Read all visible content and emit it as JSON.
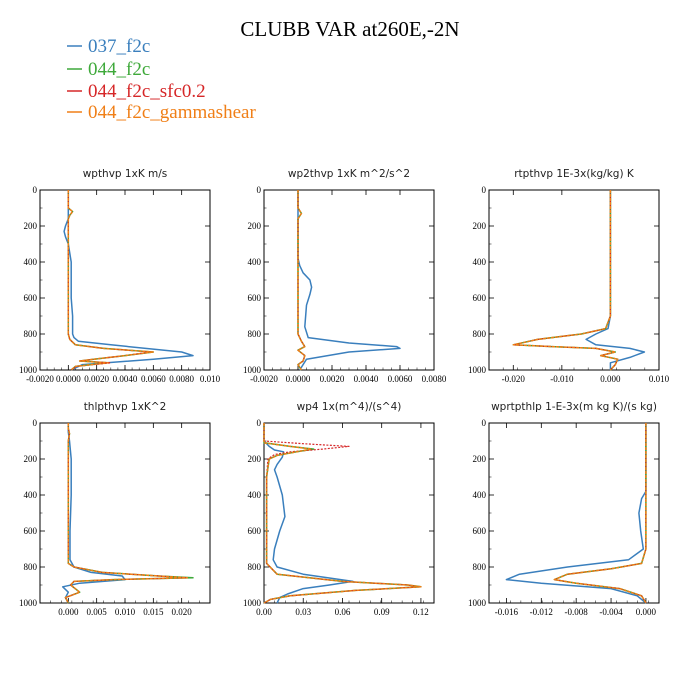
{
  "title": "CLUBB VAR at260E,-2N",
  "legend": [
    {
      "label": "037_f2c",
      "color": "#3a7fbd"
    },
    {
      "label": "044_f2c",
      "color": "#3ea93a"
    },
    {
      "label": "044_f2c_sfc0.2",
      "color": "#d62728"
    },
    {
      "label": "044_f2c_gammashear",
      "color": "#f07f17"
    }
  ],
  "chart_data": [
    {
      "type": "line",
      "title": "wpthvp  1xK m/s",
      "xlim": [
        -0.002,
        0.01
      ],
      "ylim": [
        1000,
        0
      ],
      "xticks": [
        -0.002,
        0.0,
        0.002,
        0.004,
        0.006,
        0.008,
        0.01
      ],
      "xticklabels": [
        "-0.0020",
        "0.0000",
        "0.0020",
        "0.0040",
        "0.0060",
        "0.0080",
        "0.010"
      ],
      "yticks": [
        0,
        200,
        400,
        600,
        800,
        1000
      ],
      "series": [
        {
          "name": "037_f2c",
          "x": [
            0.0,
            0.0,
            0.0,
            -0.0002,
            -0.0003,
            -0.0002,
            0.0,
            0.0002,
            0.0002,
            0.0002,
            0.0003,
            0.0003,
            0.0003,
            0.0004,
            0.0007,
            0.003,
            0.008,
            0.0088,
            0.006,
            0.001,
            0.0002
          ],
          "y": [
            0,
            110,
            160,
            200,
            230,
            260,
            300,
            400,
            500,
            600,
            700,
            780,
            800,
            820,
            840,
            860,
            900,
            920,
            940,
            970,
            1000
          ]
        },
        {
          "name": "044_f2c",
          "x": [
            0.0,
            0.0,
            0.0003,
            0.0001,
            0.0,
            0.0,
            0.0,
            0.0,
            0.0,
            0.0001,
            0.0005,
            0.0025,
            0.006,
            0.004,
            0.0018,
            0.0008,
            0.0028,
            0.0005,
            0.0002
          ],
          "y": [
            0,
            100,
            120,
            140,
            160,
            300,
            500,
            700,
            800,
            830,
            860,
            880,
            900,
            920,
            940,
            950,
            960,
            980,
            1000
          ]
        },
        {
          "name": "044_f2c_sfc0.2",
          "x": [
            0.0,
            0.0,
            0.0003,
            0.0001,
            0.0,
            0.0,
            0.0,
            0.0,
            0.0,
            0.0001,
            0.0005,
            0.0025,
            0.0058,
            0.004,
            0.0018,
            0.0008,
            0.003,
            0.0006,
            0.0002
          ],
          "y": [
            0,
            100,
            120,
            140,
            160,
            300,
            500,
            700,
            800,
            830,
            860,
            880,
            900,
            920,
            940,
            950,
            960,
            980,
            1000
          ]
        },
        {
          "name": "044_f2c_gammashear",
          "x": [
            0.0,
            0.0,
            0.0003,
            0.0001,
            0.0,
            0.0,
            0.0,
            0.0,
            0.0,
            0.0001,
            0.0005,
            0.0025,
            0.006,
            0.004,
            0.0018,
            0.0008,
            0.0028,
            0.0005,
            0.0002
          ],
          "y": [
            0,
            100,
            120,
            140,
            160,
            300,
            500,
            700,
            800,
            830,
            860,
            880,
            900,
            920,
            940,
            950,
            960,
            980,
            1000
          ]
        }
      ]
    },
    {
      "type": "line",
      "title": "wp2thvp  1xK m^2/s^2",
      "xlim": [
        -0.002,
        0.008
      ],
      "ylim": [
        1000,
        0
      ],
      "xticks": [
        -0.002,
        0.0,
        0.002,
        0.004,
        0.006,
        0.008
      ],
      "xticklabels": [
        "-0.0020",
        "0.0000",
        "0.0020",
        "0.0040",
        "0.0060",
        "0.0080"
      ],
      "yticks": [
        0,
        200,
        400,
        600,
        800,
        1000
      ],
      "series": [
        {
          "name": "037_f2c",
          "x": [
            0.0,
            0.0,
            0.0,
            0.0001,
            0.0003,
            0.0007,
            0.0008,
            0.0007,
            0.0005,
            0.0004,
            0.0006,
            0.003,
            0.0058,
            0.006,
            0.003,
            0.0005,
            0.0001
          ],
          "y": [
            0,
            200,
            380,
            420,
            460,
            500,
            540,
            580,
            640,
            760,
            820,
            850,
            870,
            880,
            900,
            940,
            1000
          ]
        },
        {
          "name": "044_f2c",
          "x": [
            0.0,
            0.0,
            0.0002,
            0.0,
            0.0,
            0.0,
            0.0,
            0.0,
            0.0002,
            0.0004,
            0.0,
            0.0004,
            0.0003,
            0.0,
            0.0002
          ],
          "y": [
            0,
            100,
            130,
            160,
            300,
            500,
            700,
            800,
            840,
            870,
            890,
            920,
            950,
            970,
            1000
          ]
        },
        {
          "name": "044_f2c_sfc0.2",
          "x": [
            0.0,
            0.0,
            0.0002,
            0.0,
            0.0,
            0.0,
            0.0,
            0.0,
            0.0002,
            0.0004,
            0.0,
            0.0004,
            0.0003,
            0.0,
            0.0002
          ],
          "y": [
            0,
            100,
            130,
            160,
            300,
            500,
            700,
            800,
            840,
            870,
            890,
            920,
            950,
            970,
            1000
          ]
        },
        {
          "name": "044_f2c_gammashear",
          "x": [
            0.0,
            0.0,
            0.0002,
            0.0,
            0.0,
            0.0,
            0.0,
            0.0,
            0.0002,
            0.0004,
            0.0,
            0.0004,
            0.0003,
            0.0,
            0.0002
          ],
          "y": [
            0,
            100,
            130,
            160,
            300,
            500,
            700,
            800,
            840,
            870,
            890,
            920,
            950,
            970,
            1000
          ]
        }
      ]
    },
    {
      "type": "line",
      "title": "rtpthvp  1E-3x(kg/kg) K",
      "xlim": [
        -0.025,
        0.01
      ],
      "ylim": [
        1000,
        0
      ],
      "xticks": [
        -0.02,
        -0.01,
        0.0,
        0.01
      ],
      "xticklabels": [
        "-0.020",
        "-0.010",
        "0.000",
        "0.010"
      ],
      "yticks": [
        0,
        200,
        400,
        600,
        800,
        1000
      ],
      "series": [
        {
          "name": "037_f2c",
          "x": [
            0.0,
            0.0,
            0.0,
            -0.0005,
            -0.003,
            -0.005,
            -0.003,
            0.004,
            0.007,
            0.004,
            0.0,
            0.0
          ],
          "y": [
            0,
            300,
            700,
            770,
            800,
            830,
            860,
            880,
            900,
            930,
            960,
            1000
          ]
        },
        {
          "name": "044_f2c",
          "x": [
            0.0,
            0.0,
            0.0,
            -0.001,
            -0.006,
            -0.015,
            -0.02,
            -0.012,
            -0.003,
            0.001,
            -0.002,
            0.0015,
            0.001,
            0.0
          ],
          "y": [
            0,
            300,
            700,
            770,
            800,
            830,
            860,
            870,
            880,
            900,
            920,
            940,
            970,
            1000
          ]
        },
        {
          "name": "044_f2c_sfc0.2",
          "x": [
            0.0,
            0.0,
            0.0,
            -0.001,
            -0.006,
            -0.015,
            -0.02,
            -0.012,
            -0.003,
            0.001,
            -0.002,
            0.0015,
            0.001,
            0.0
          ],
          "y": [
            0,
            300,
            700,
            770,
            800,
            830,
            860,
            870,
            880,
            900,
            920,
            940,
            970,
            1000
          ]
        },
        {
          "name": "044_f2c_gammashear",
          "x": [
            0.0,
            0.0,
            0.0,
            -0.001,
            -0.006,
            -0.015,
            -0.02,
            -0.012,
            -0.003,
            0.001,
            -0.002,
            0.0015,
            0.001,
            0.0
          ],
          "y": [
            0,
            300,
            700,
            770,
            800,
            830,
            860,
            870,
            880,
            900,
            920,
            940,
            970,
            1000
          ]
        }
      ]
    },
    {
      "type": "line",
      "title": "thlpthvp  1xK^2",
      "xlim": [
        -0.005,
        0.025
      ],
      "ylim": [
        1000,
        0
      ],
      "xticks": [
        0.0,
        0.005,
        0.01,
        0.015,
        0.02
      ],
      "xticklabels": [
        "0.000",
        "0.005",
        "0.010",
        "0.015",
        "0.020"
      ],
      "yticks": [
        0,
        200,
        400,
        600,
        800,
        1000
      ],
      "series": [
        {
          "name": "037_f2c",
          "x": [
            0.0,
            0.0,
            0.0002,
            0.0005,
            0.0005,
            0.0003,
            0.0003,
            0.001,
            0.004,
            0.0095,
            0.01,
            0.002,
            -0.001,
            0.0,
            -0.0005,
            0.0
          ],
          "y": [
            0,
            50,
            100,
            200,
            400,
            600,
            760,
            800,
            830,
            850,
            870,
            890,
            910,
            940,
            970,
            1000
          ]
        },
        {
          "name": "044_f2c",
          "x": [
            0.0,
            0.0,
            0.0002,
            0.0,
            0.0,
            0.0,
            0.0,
            0.001,
            0.006,
            0.016,
            0.022,
            0.008,
            0.001,
            0.0004,
            0.002,
            -0.0005,
            0.0
          ],
          "y": [
            0,
            30,
            60,
            100,
            300,
            600,
            780,
            800,
            830,
            850,
            860,
            870,
            880,
            900,
            940,
            970,
            1000
          ]
        },
        {
          "name": "044_f2c_sfc0.2",
          "x": [
            0.0,
            0.0,
            0.0002,
            0.0,
            0.0,
            0.0,
            0.0,
            0.001,
            0.006,
            0.016,
            0.021,
            0.008,
            0.001,
            0.0004,
            0.002,
            -0.0005,
            0.0
          ],
          "y": [
            0,
            30,
            60,
            100,
            300,
            600,
            780,
            800,
            830,
            850,
            860,
            870,
            880,
            900,
            940,
            970,
            1000
          ]
        },
        {
          "name": "044_f2c_gammashear",
          "x": [
            0.0,
            0.0,
            0.0002,
            0.0,
            0.0,
            0.0,
            0.0,
            0.001,
            0.006,
            0.016,
            0.021,
            0.008,
            0.001,
            0.0004,
            0.002,
            -0.0005,
            0.0
          ],
          "y": [
            0,
            30,
            60,
            100,
            300,
            600,
            780,
            800,
            830,
            850,
            860,
            870,
            880,
            900,
            940,
            970,
            1000
          ]
        }
      ]
    },
    {
      "type": "line",
      "title": "wp4  1x(m^4)/(s^4)",
      "xlim": [
        0.0,
        0.13
      ],
      "ylim": [
        1000,
        0
      ],
      "xticks": [
        0.0,
        0.03,
        0.06,
        0.09,
        0.12
      ],
      "xticklabels": [
        "0.00",
        "0.03",
        "0.06",
        "0.09",
        "0.12"
      ],
      "yticks": [
        0,
        200,
        400,
        600,
        800,
        1000
      ],
      "series": [
        {
          "name": "037_f2c",
          "x": [
            0.0,
            0.0,
            0.004,
            0.008,
            0.015,
            0.014,
            0.01,
            0.008,
            0.01,
            0.014,
            0.016,
            0.012,
            0.008,
            0.007,
            0.01,
            0.03,
            0.068,
            0.05,
            0.03,
            0.018,
            0.012,
            0.01
          ],
          "y": [
            0,
            100,
            130,
            150,
            160,
            190,
            230,
            260,
            300,
            400,
            520,
            600,
            700,
            760,
            800,
            840,
            880,
            900,
            920,
            950,
            970,
            1000
          ]
        },
        {
          "name": "044_f2c",
          "x": [
            0.0,
            0.0,
            0.02,
            0.038,
            0.025,
            0.01,
            0.004,
            0.002,
            0.002,
            0.002,
            0.01,
            0.06,
            0.11,
            0.12,
            0.07,
            0.02,
            0.005,
            0.0
          ],
          "y": [
            0,
            110,
            130,
            145,
            160,
            180,
            200,
            300,
            500,
            780,
            840,
            880,
            900,
            910,
            930,
            960,
            980,
            1000
          ]
        },
        {
          "name": "044_f2c_sfc0.2",
          "x": [
            0.0,
            0.0,
            0.03,
            0.065,
            0.045,
            0.02,
            0.008,
            0.003,
            0.002,
            0.002,
            0.002,
            0.01,
            0.06,
            0.11,
            0.12,
            0.07,
            0.02,
            0.005,
            0.0
          ],
          "y": [
            0,
            100,
            115,
            130,
            145,
            160,
            175,
            200,
            300,
            500,
            780,
            840,
            880,
            900,
            910,
            930,
            960,
            980,
            1000
          ]
        },
        {
          "name": "044_f2c_gammashear",
          "x": [
            0.0,
            0.0,
            0.02,
            0.036,
            0.025,
            0.01,
            0.004,
            0.002,
            0.002,
            0.002,
            0.01,
            0.06,
            0.11,
            0.12,
            0.07,
            0.02,
            0.005,
            0.0
          ],
          "y": [
            0,
            110,
            130,
            145,
            160,
            180,
            200,
            300,
            500,
            780,
            840,
            880,
            900,
            910,
            930,
            960,
            980,
            1000
          ]
        }
      ]
    },
    {
      "type": "line",
      "title": "wprtpthlp  1-E-3x(m kg K)/(s kg)",
      "xlim": [
        -0.018,
        0.0015
      ],
      "ylim": [
        1000,
        0
      ],
      "xticks": [
        -0.016,
        -0.012,
        -0.008,
        -0.004,
        0.0
      ],
      "xticklabels": [
        "-0.016",
        "-0.012",
        "-0.008",
        "-0.004",
        "0.000"
      ],
      "yticks": [
        0,
        200,
        400,
        600,
        800,
        1000
      ],
      "series": [
        {
          "name": "037_f2c",
          "x": [
            0.0,
            0.0,
            0.0,
            -0.0005,
            -0.0008,
            -0.0006,
            -0.0003,
            -0.002,
            -0.009,
            -0.0145,
            -0.016,
            -0.012,
            -0.004,
            -0.001,
            0.0
          ],
          "y": [
            0,
            200,
            380,
            420,
            500,
            600,
            700,
            760,
            800,
            840,
            870,
            890,
            920,
            960,
            1000
          ]
        },
        {
          "name": "044_f2c",
          "x": [
            0.0,
            0.0,
            0.0,
            -0.0005,
            -0.004,
            -0.009,
            -0.0105,
            -0.008,
            -0.003,
            -0.0005,
            0.0
          ],
          "y": [
            0,
            200,
            700,
            780,
            810,
            840,
            870,
            890,
            920,
            960,
            1000
          ]
        },
        {
          "name": "044_f2c_sfc0.2",
          "x": [
            0.0,
            0.0,
            0.0,
            -0.0005,
            -0.004,
            -0.009,
            -0.0105,
            -0.008,
            -0.003,
            -0.0005,
            0.0
          ],
          "y": [
            0,
            200,
            700,
            780,
            810,
            840,
            870,
            890,
            920,
            960,
            1000
          ]
        },
        {
          "name": "044_f2c_gammashear",
          "x": [
            0.0,
            0.0,
            0.0,
            -0.0005,
            -0.004,
            -0.009,
            -0.0105,
            -0.008,
            -0.003,
            -0.0005,
            0.0
          ],
          "y": [
            0,
            200,
            700,
            780,
            810,
            840,
            870,
            890,
            920,
            960,
            1000
          ]
        }
      ]
    }
  ]
}
